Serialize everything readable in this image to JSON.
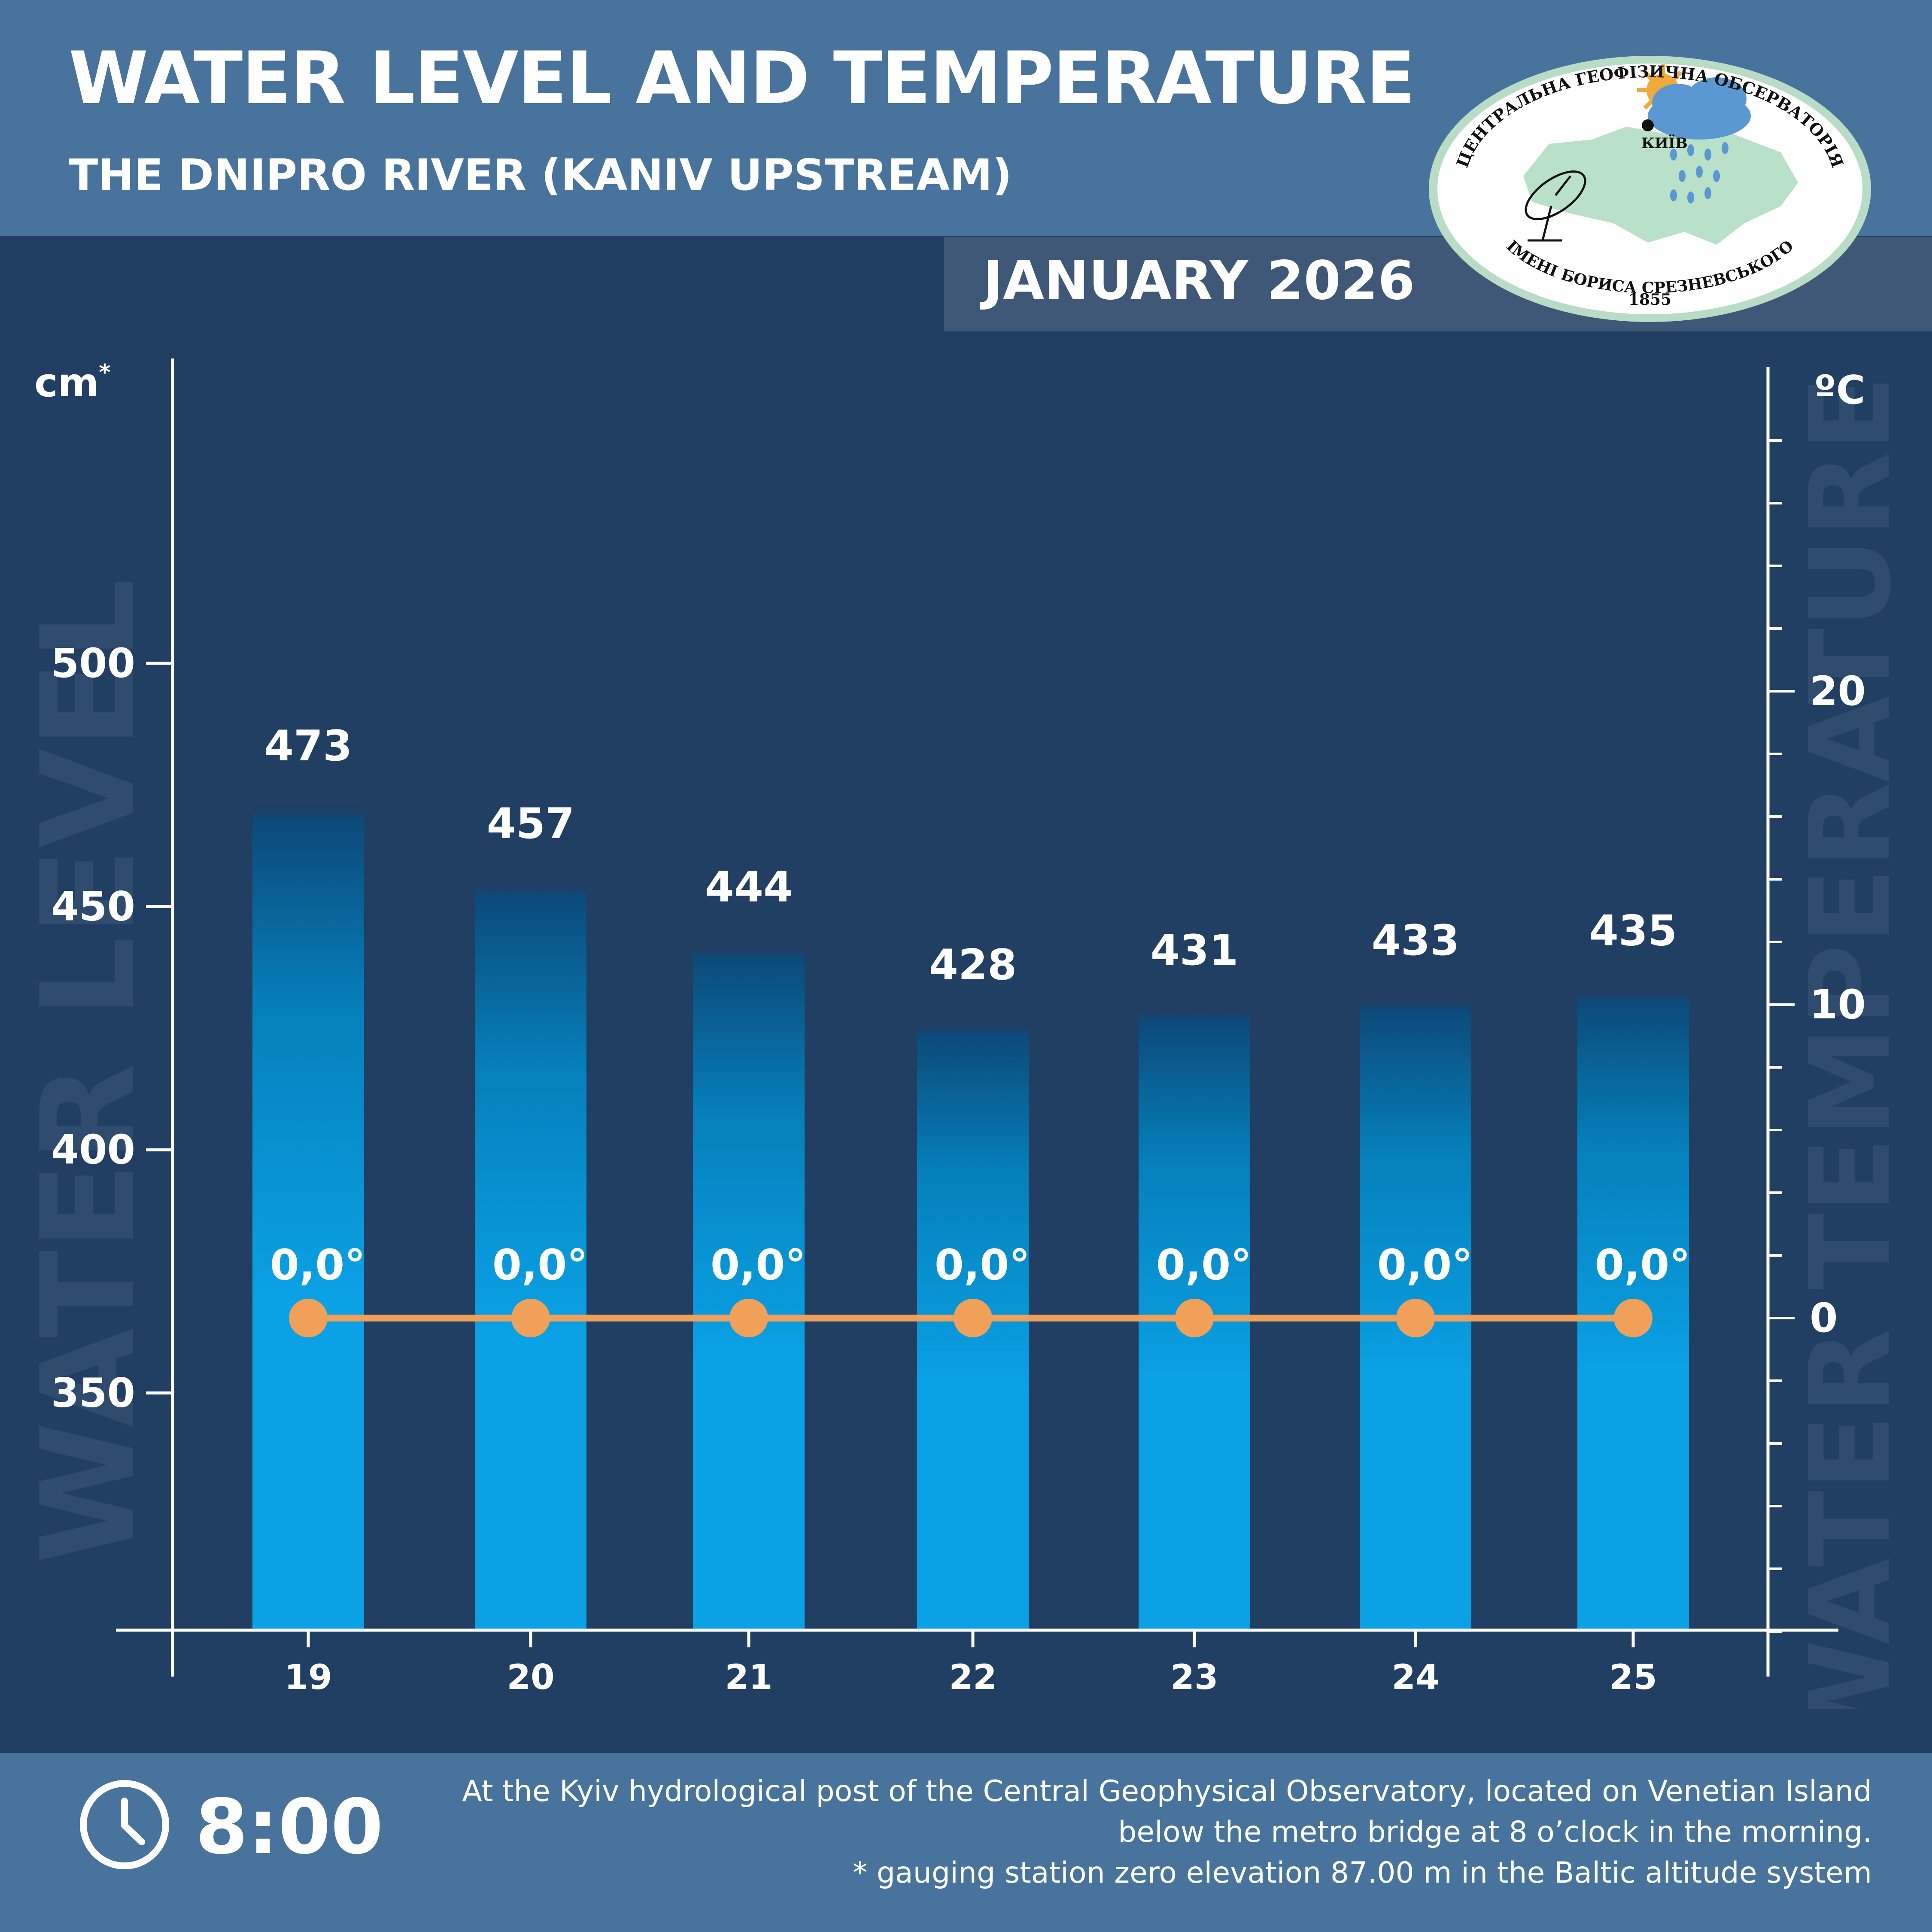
{
  "header": {
    "title": "WATER LEVEL AND TEMPERATURE",
    "subtitle": "THE DNIPRO RIVER (KANIV UPSTREAM)",
    "month": "JANUARY 2026"
  },
  "logo": {
    "top_text": "ЦЕНТРАЛЬНА ГЕОФІЗИЧНА ОБСЕРВАТОРІЯ",
    "bottom_text": "ІМЕНІ БОРИСА СРЕЗНЕВСЬКОГО",
    "year": "1855",
    "city": "КИЇВ"
  },
  "footer": {
    "time": "8:00",
    "note1": "At the Kyiv hydrological post of the Central Geophysical Observatory, located on Venetian Island",
    "note2": "below the metro bridge  at 8 o’clock in the morning.",
    "note3": "* gauging station zero elevation 87.00 m in the Baltic altitude system"
  },
  "colors": {
    "background": "#213e63",
    "header": "#48739c",
    "bar_bottom": "#0aa1e5",
    "bar_top": "#0c4a7a",
    "temperature_line": "#f0a058",
    "watermark": "#2f4b6e"
  },
  "chart_data": {
    "type": "bar",
    "categories": [
      "19",
      "20",
      "21",
      "22",
      "23",
      "24",
      "25"
    ],
    "series": [
      {
        "values": [
          473,
          457,
          444,
          428,
          431,
          433,
          435
        ]
      },
      {
        "type": "line",
        "values": [
          0.0,
          0.0,
          0.0,
          0.0,
          0.0,
          0.0,
          0.0
        ]
      }
    ],
    "value_labels": [
      "473",
      "457",
      "444",
      "428",
      "431",
      "433",
      "435"
    ],
    "temperature_labels": [
      "0,0°",
      "0,0°",
      "0,0°",
      "0,0°",
      "0,0°",
      "0,0°",
      "0,0°"
    ],
    "y_left": {
      "unit": "cm",
      "unit_marker": "*",
      "ticks": [
        350,
        400,
        450,
        500
      ],
      "watermark": "WATER LEVEL"
    },
    "y_right": {
      "unit": "ºC",
      "ticks": [
        0,
        10,
        20
      ],
      "watermark": "WATER TEMPERATURE"
    }
  }
}
